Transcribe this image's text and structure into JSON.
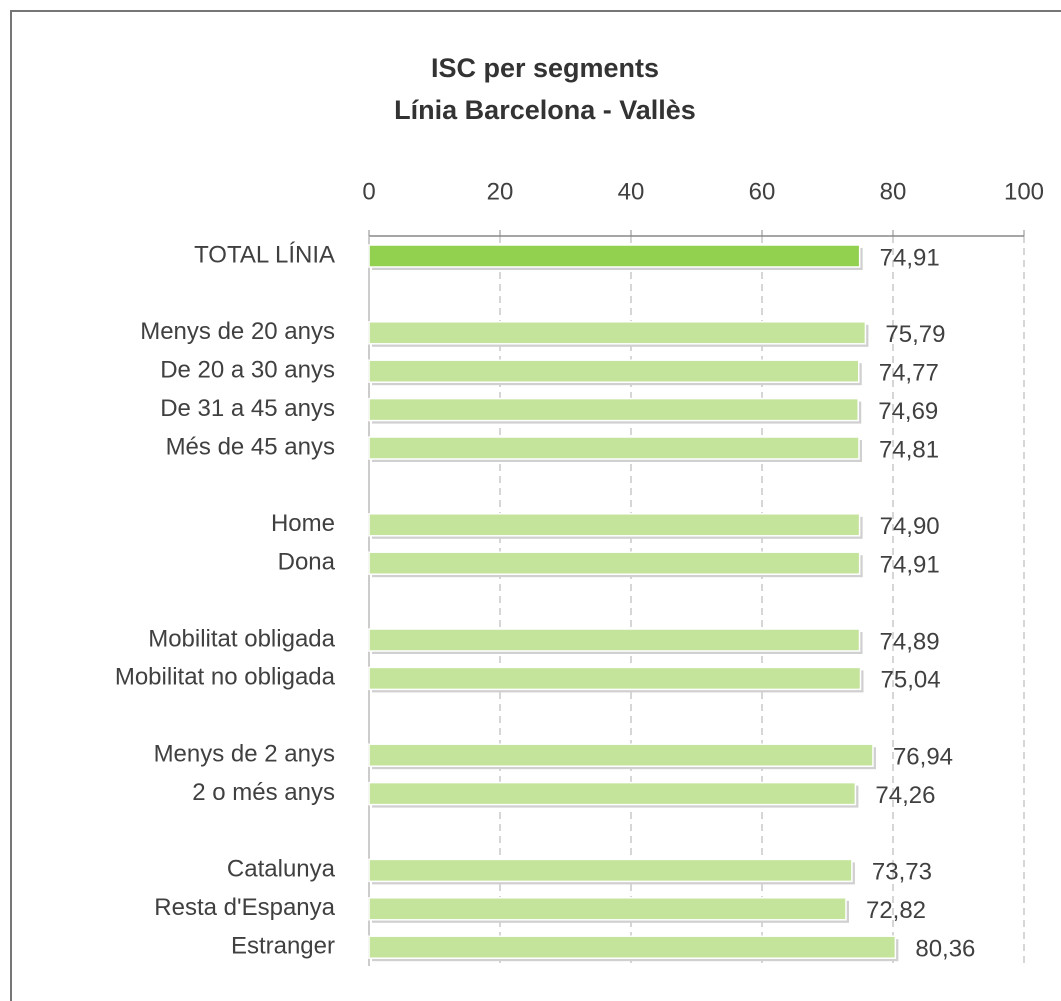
{
  "chart_data": {
    "type": "bar",
    "orientation": "horizontal",
    "title": "ISC per segments",
    "subtitle": "Línia Barcelona - Vallès",
    "categories": [
      "TOTAL LÍNIA",
      null,
      "Menys de 20 anys",
      "De 20 a 30 anys",
      "De 31 a 45 anys",
      "Més de 45 anys",
      null,
      "Home",
      "Dona",
      null,
      "Mobilitat obligada",
      "Mobilitat no obligada",
      null,
      "Menys de 2 anys",
      "2 o més anys",
      null,
      "Catalunya",
      "Resta d'Espanya",
      "Estranger"
    ],
    "values": [
      74.91,
      null,
      75.79,
      74.77,
      74.69,
      74.81,
      null,
      74.9,
      74.91,
      null,
      74.89,
      75.04,
      null,
      76.94,
      74.26,
      null,
      73.73,
      72.82,
      80.36
    ],
    "value_labels": [
      "74,91",
      null,
      "75,79",
      "74,77",
      "74,69",
      "74,81",
      null,
      "74,90",
      "74,91",
      null,
      "74,89",
      "75,04",
      null,
      "76,94",
      "74,26",
      null,
      "73,73",
      "72,82",
      "80,36"
    ],
    "colors": [
      "#92d050",
      null,
      "#c4e49b",
      "#c4e49b",
      "#c4e49b",
      "#c4e49b",
      null,
      "#c4e49b",
      "#c4e49b",
      null,
      "#c4e49b",
      "#c4e49b",
      null,
      "#c4e49b",
      "#c4e49b",
      null,
      "#c4e49b",
      "#c4e49b",
      "#c4e49b"
    ],
    "xlim": [
      0,
      100
    ],
    "xticks": [
      0,
      20,
      40,
      60,
      80,
      100
    ],
    "grid": true
  }
}
